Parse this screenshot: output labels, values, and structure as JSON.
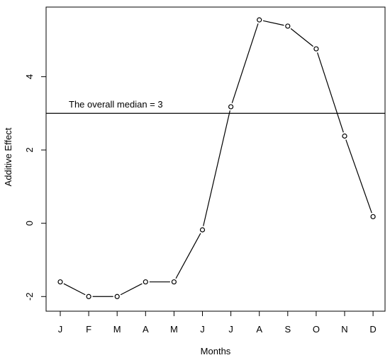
{
  "chart_data": {
    "type": "line",
    "title": "",
    "xlabel": "Months",
    "ylabel": "Additive Effect",
    "categories": [
      "J",
      "F",
      "M",
      "A",
      "M",
      "J",
      "J",
      "A",
      "S",
      "O",
      "N",
      "D"
    ],
    "series": [
      {
        "values": [
          -1.6,
          -2.0,
          -2.0,
          -1.6,
          -1.6,
          -0.18,
          3.18,
          5.55,
          5.38,
          4.76,
          2.38,
          0.18
        ]
      }
    ],
    "y_ticks": [
      -2,
      0,
      2,
      4
    ],
    "ylim": [
      -2.4,
      5.9
    ],
    "reference_line": {
      "value": 3,
      "label": "The overall median = 3"
    },
    "marker": "open-circle",
    "grid": false,
    "legend": "none",
    "colors": {
      "line": "#000000",
      "background": "#ffffff"
    }
  }
}
